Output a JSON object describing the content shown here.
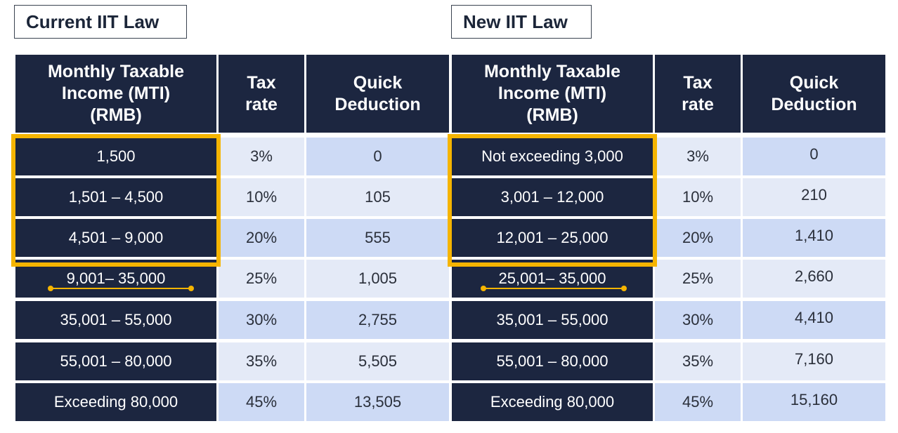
{
  "labels": {
    "current": "Current IIT Law",
    "new": "New IIT Law"
  },
  "headers": {
    "mti": "Monthly Taxable Income (MTI) (RMB)",
    "rate": "Tax rate",
    "deduction": "Quick Deduction"
  },
  "current_rows": [
    {
      "income": "1,500",
      "rate": "3%",
      "deduction": "0"
    },
    {
      "income": "1,501 – 4,500",
      "rate": "10%",
      "deduction": "105"
    },
    {
      "income": "4,501 – 9,000",
      "rate": "20%",
      "deduction": "555"
    },
    {
      "income": "9,001– 35,000",
      "rate": "25%",
      "deduction": "1,005"
    },
    {
      "income": "35,001 – 55,000",
      "rate": "30%",
      "deduction": "2,755"
    },
    {
      "income": "55,001 – 80,000",
      "rate": "35%",
      "deduction": "5,505"
    },
    {
      "income": "Exceeding 80,000",
      "rate": "45%",
      "deduction": "13,505"
    }
  ],
  "new_rows": [
    {
      "income": "Not exceeding 3,000",
      "rate": "3%",
      "deduction": "0"
    },
    {
      "income": "3,001 – 12,000",
      "rate": "10%",
      "deduction": "210"
    },
    {
      "income": "12,001 – 25,000",
      "rate": "20%",
      "deduction": "1,410"
    },
    {
      "income": "25,001– 35,000",
      "rate": "25%",
      "deduction": "2,660"
    },
    {
      "income": "35,001 – 55,000",
      "rate": "30%",
      "deduction": "4,410"
    },
    {
      "income": "55,001 – 80,000",
      "rate": "35%",
      "deduction": "7,160"
    },
    {
      "income": "Exceeding 80,000",
      "rate": "45%",
      "deduction": "15,160"
    }
  ],
  "colors": {
    "header_bg": "#1c2640",
    "row_light": "#e4eaf7",
    "row_mid": "#cddaf5",
    "highlight": "#f5b400"
  }
}
